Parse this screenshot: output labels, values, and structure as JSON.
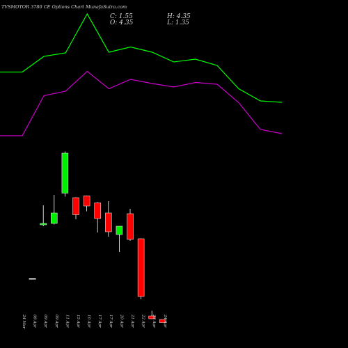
{
  "title": "TVSMOTOR 3780 CE Options Chart MunafaSutra.com",
  "ohlc": {
    "c_label": "C: 1.55",
    "o_label": "O: 4.35",
    "h_label": "H: 4.35",
    "l_label": "L: 1.35"
  },
  "colors": {
    "bull": "#00ee00",
    "bear": "#ff0000",
    "upper_line": "#00ff00",
    "lower_line": "#cc00cc",
    "neutral": "#ffffff"
  },
  "chart_data": {
    "type": "candlestick",
    "categories": [
      "24 Mar",
      "08 Apr",
      "09 Apr",
      "09 Apr",
      "11 Apr",
      "15 Apr",
      "16 Apr",
      "17 Apr",
      "17 Apr",
      "20 Apr",
      "21 Apr",
      "22 Apr",
      "23 Apr",
      "24 Apr"
    ],
    "candles": [
      {
        "open": 20.0,
        "high": 20.0,
        "low": 20.0,
        "close": 20.0
      },
      {
        "open": 35.4,
        "high": 41.0,
        "low": 35.0,
        "close": 35.8
      },
      {
        "open": 35.8,
        "high": 44.0,
        "low": 35.5,
        "close": 38.8
      },
      {
        "open": 44.5,
        "high": 56.5,
        "low": 43.5,
        "close": 56.0
      },
      {
        "open": 43.2,
        "high": 43.3,
        "low": 37.0,
        "close": 38.3
      },
      {
        "open": 43.7,
        "high": 43.8,
        "low": 39.3,
        "close": 40.8
      },
      {
        "open": 41.7,
        "high": 41.9,
        "low": 33.2,
        "close": 37.2
      },
      {
        "open": 38.8,
        "high": 42.2,
        "low": 32.0,
        "close": 33.4
      },
      {
        "open": 32.6,
        "high": 35.0,
        "low": 27.6,
        "close": 35.0
      },
      {
        "open": 38.6,
        "high": 40.0,
        "low": 30.8,
        "close": 31.2
      },
      {
        "open": 31.4,
        "high": 31.5,
        "low": 14.0,
        "close": 14.8
      },
      {
        "open": 9.2,
        "high": 10.7,
        "low": 8.4,
        "close": 8.4
      },
      {
        "open": 8.2,
        "high": 8.2,
        "low": 7.3,
        "close": 7.3
      }
    ],
    "candle_x_index": [
      0,
      1,
      2,
      3,
      4,
      5,
      6,
      7,
      8,
      9,
      10,
      11,
      12
    ],
    "upper_band": [
      {
        "x": 0,
        "y": 79.3
      },
      {
        "x": 1,
        "y": 79.3
      },
      {
        "x": 2,
        "y": 83.8
      },
      {
        "x": 3,
        "y": 84.8
      },
      {
        "x": 4,
        "y": 96.0
      },
      {
        "x": 5,
        "y": 85.0
      },
      {
        "x": 6,
        "y": 86.5
      },
      {
        "x": 7,
        "y": 85.0
      },
      {
        "x": 8,
        "y": 82.2
      },
      {
        "x": 9,
        "y": 83.0
      },
      {
        "x": 10,
        "y": 81.2
      },
      {
        "x": 11,
        "y": 74.5
      },
      {
        "x": 12,
        "y": 71.0
      },
      {
        "x": 13,
        "y": 70.6
      }
    ],
    "lower_band": [
      {
        "x": 0,
        "y": 61.0
      },
      {
        "x": 1,
        "y": 61.0
      },
      {
        "x": 2,
        "y": 72.5
      },
      {
        "x": 3,
        "y": 73.8
      },
      {
        "x": 4,
        "y": 79.5
      },
      {
        "x": 5,
        "y": 74.5
      },
      {
        "x": 6,
        "y": 77.2
      },
      {
        "x": 7,
        "y": 76.0
      },
      {
        "x": 8,
        "y": 75.0
      },
      {
        "x": 9,
        "y": 76.3
      },
      {
        "x": 10,
        "y": 75.8
      },
      {
        "x": 11,
        "y": 70.5
      },
      {
        "x": 12,
        "y": 62.8
      },
      {
        "x": 13,
        "y": 61.6
      }
    ],
    "ylim": [
      0,
      100
    ],
    "xlabel": "",
    "ylabel": "",
    "grid": false
  }
}
